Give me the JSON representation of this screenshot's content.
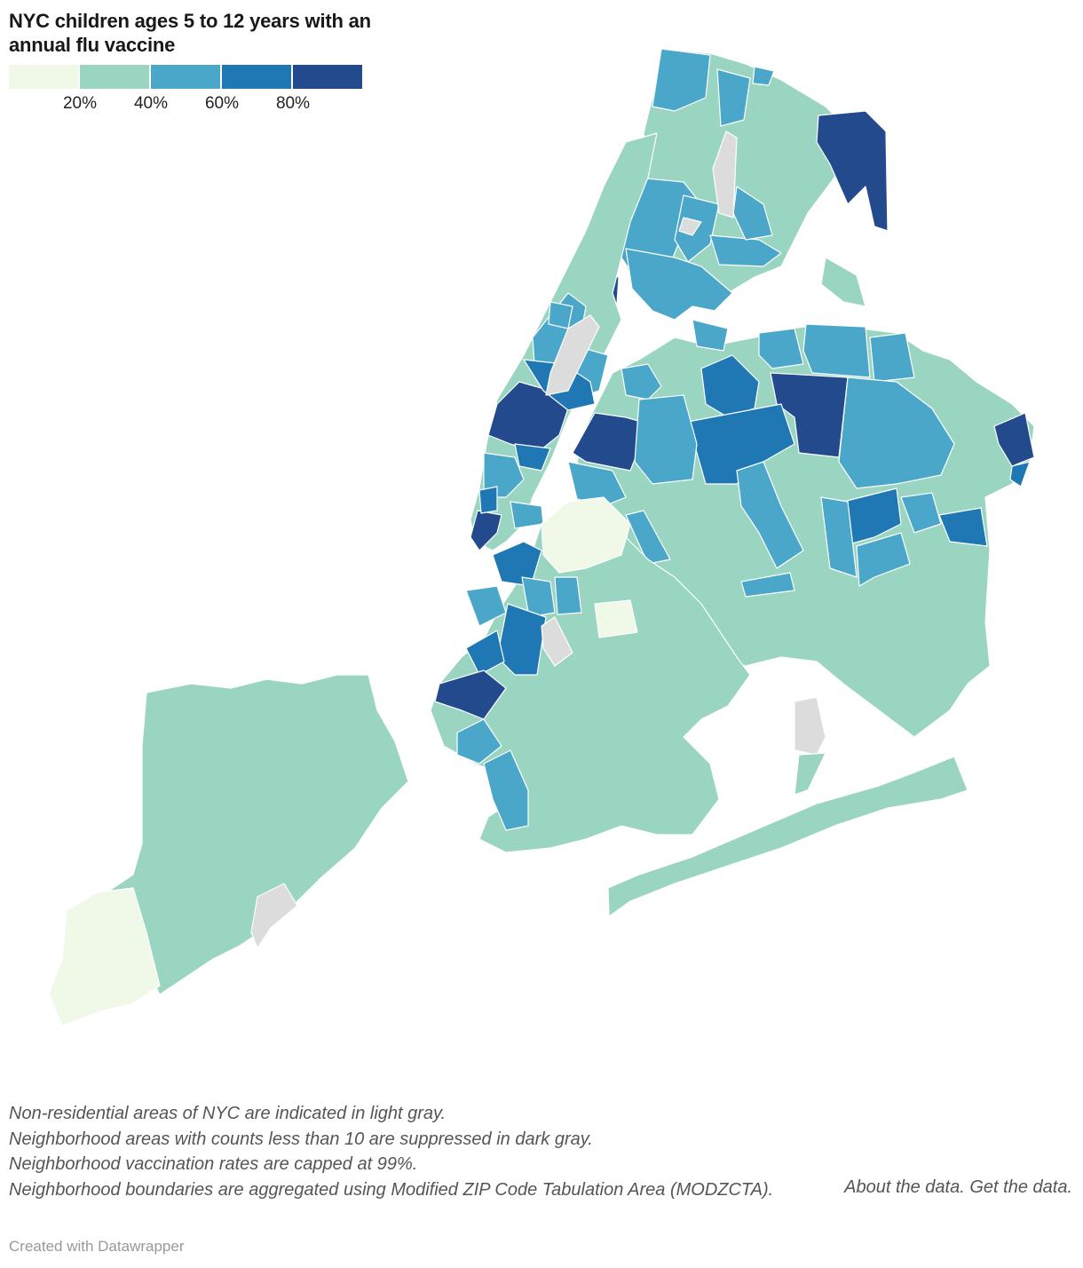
{
  "title": "NYC children ages 5 to 12 years with an annual flu vaccine",
  "legend": {
    "bins": [
      {
        "color": "#f0f9e8"
      },
      {
        "color": "#99d5c0"
      },
      {
        "color": "#4ba7c9"
      },
      {
        "color": "#1f78b4"
      },
      {
        "color": "#234a8c"
      }
    ],
    "ticks": [
      "20%",
      "40%",
      "60%",
      "80%"
    ]
  },
  "colors": {
    "non_residential": "#dcdcdc",
    "suppressed": "#b4b4b4",
    "water": "#ffffff",
    "boundary": "#ffffff"
  },
  "notes": [
    "Non-residential areas of NYC are indicated in light gray.",
    "Neighborhood areas with counts less than 10 are suppressed in dark gray.",
    "Neighborhood vaccination rates are capped at 99%.",
    "Neighborhood boundaries are aggregated using Modified ZIP Code Tabulation Area (MODZCTA)."
  ],
  "links": {
    "about": "About the data.",
    "get": "Get the data."
  },
  "credit": "Created with Datawrapper"
}
